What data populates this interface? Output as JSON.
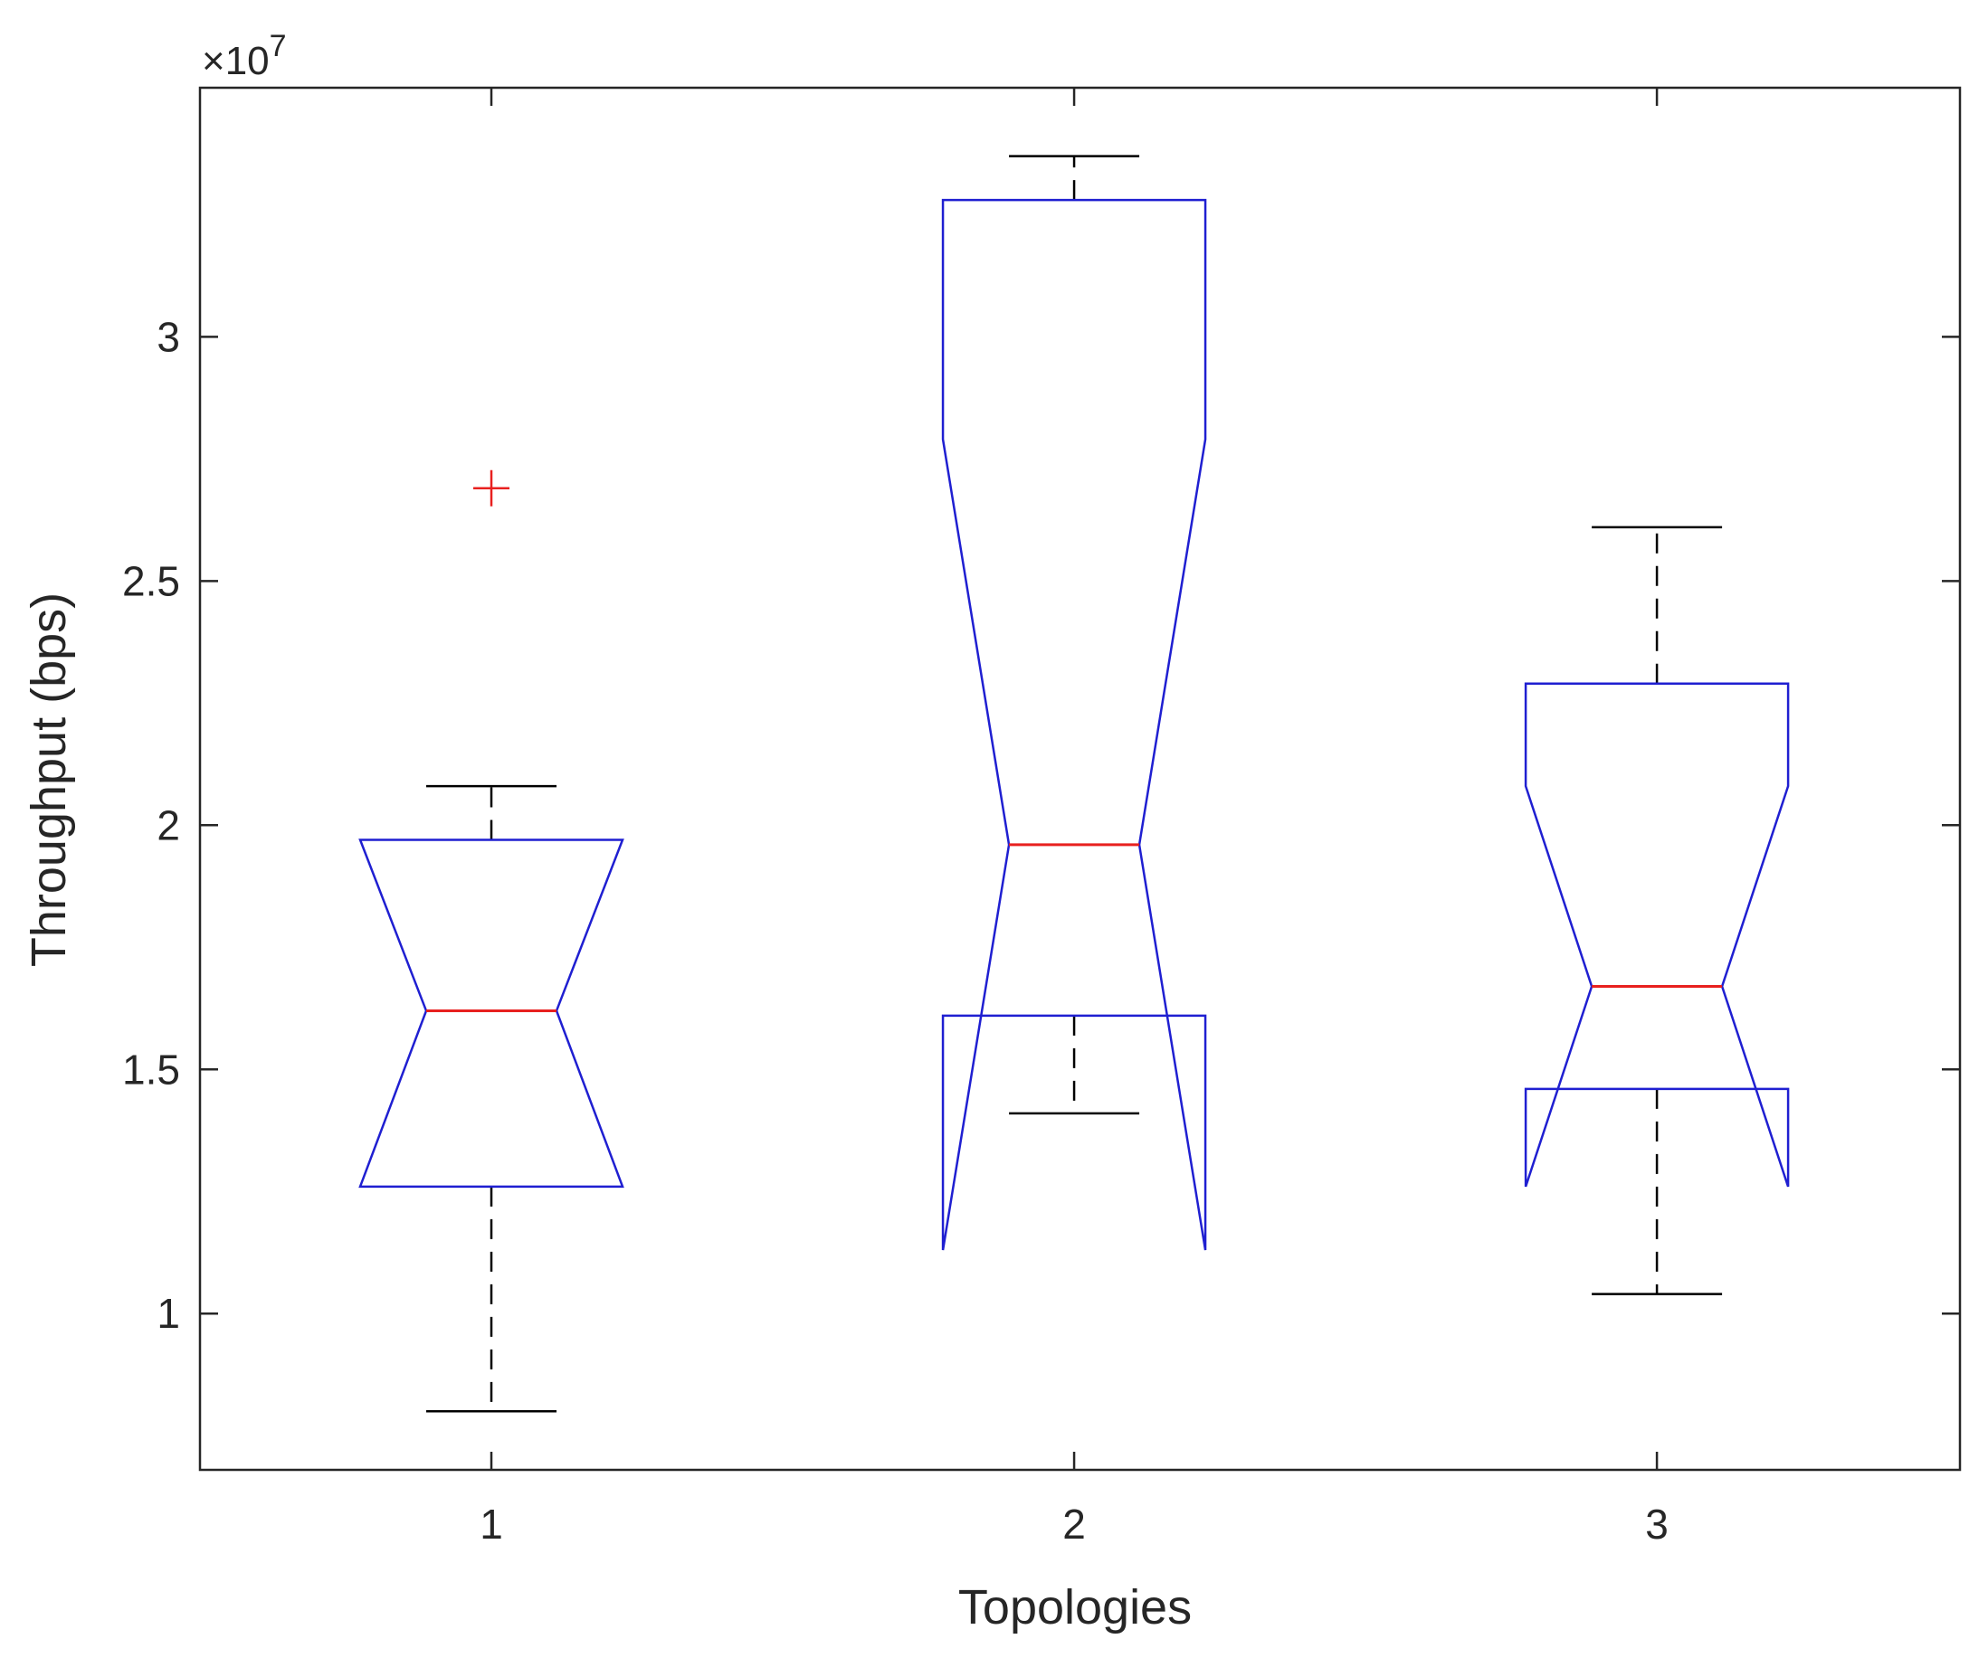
{
  "chart_data": {
    "type": "boxplot",
    "notched": true,
    "xlabel": "Topologies",
    "ylabel": "Throughput (bps)",
    "y_exponent_label": "×10",
    "y_exponent_power": "7",
    "y_multiplier": 10000000,
    "ylim": [
      0.68,
      3.51
    ],
    "xlim": [
      0.5,
      3.52
    ],
    "yticks": [
      1,
      1.5,
      2,
      2.5,
      3
    ],
    "ytick_labels": [
      "1",
      "1.5",
      "2",
      "2.5",
      "3"
    ],
    "categories": [
      "1",
      "2",
      "3"
    ],
    "grid": false,
    "boxes": [
      {
        "x": 1,
        "whisker_low": 0.8,
        "q1": 1.26,
        "median": 1.62,
        "q3": 1.97,
        "whisker_high": 2.08,
        "notch_low": 1.26,
        "notch_high": 1.97,
        "outliers": [
          2.69
        ]
      },
      {
        "x": 2,
        "whisker_low": 1.41,
        "q1": 1.61,
        "median": 1.96,
        "q3": 3.28,
        "whisker_high": 3.37,
        "notch_low": 1.13,
        "notch_high": 2.79,
        "outliers": []
      },
      {
        "x": 3,
        "whisker_low": 1.04,
        "q1": 1.46,
        "median": 1.67,
        "q3": 2.29,
        "whisker_high": 2.61,
        "notch_low": 1.26,
        "notch_high": 2.08,
        "outliers": []
      }
    ],
    "colors": {
      "box": "#1f1fd1",
      "median": "#e8201f",
      "whisker": "#000000",
      "outlier": "#e8201f",
      "axis": "#262626"
    }
  }
}
